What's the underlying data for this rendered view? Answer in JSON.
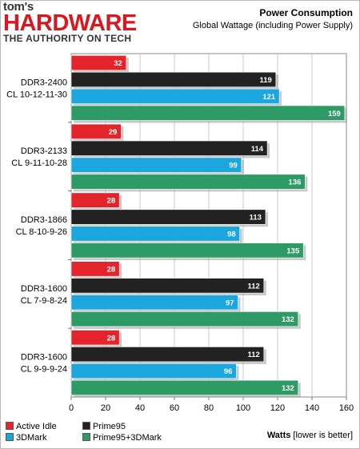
{
  "logo": {
    "line1": "tom's",
    "line2": "HARDWARE",
    "line3": "THE AUTHORITY ON TECH"
  },
  "chart_data": {
    "type": "bar",
    "orientation": "horizontal",
    "title": "Power Consumption",
    "subtitle": "Global Wattage (including Power Supply)",
    "xlabel_bold": "Watts",
    "xlabel_rest": " [lower is better]",
    "xlim": [
      0,
      160
    ],
    "xticks": [
      0,
      20,
      40,
      60,
      80,
      100,
      120,
      140,
      160
    ],
    "grid": true,
    "legend_position": "bottom-left",
    "categories": [
      [
        "DDR3-2400",
        "CL 10-12-11-30"
      ],
      [
        "DDR3-2133",
        "CL 9-11-10-28"
      ],
      [
        "DDR3-1866",
        "CL 8-10-9-26"
      ],
      [
        "DDR3-1600",
        "CL 7-9-8-24"
      ],
      [
        "DDR3-1600",
        "CL 9-9-9-24"
      ]
    ],
    "series": [
      {
        "name": "Active Idle",
        "color": "#e3242b",
        "values": [
          32,
          29,
          28,
          28,
          28
        ]
      },
      {
        "name": "Prime95",
        "color": "#222222",
        "values": [
          119,
          114,
          113,
          112,
          112
        ]
      },
      {
        "name": "3DMark",
        "color": "#1ba6de",
        "values": [
          121,
          99,
          98,
          97,
          96
        ]
      },
      {
        "name": "Prime95+3DMark",
        "color": "#2e9a66",
        "values": [
          159,
          136,
          135,
          132,
          132
        ]
      }
    ]
  }
}
